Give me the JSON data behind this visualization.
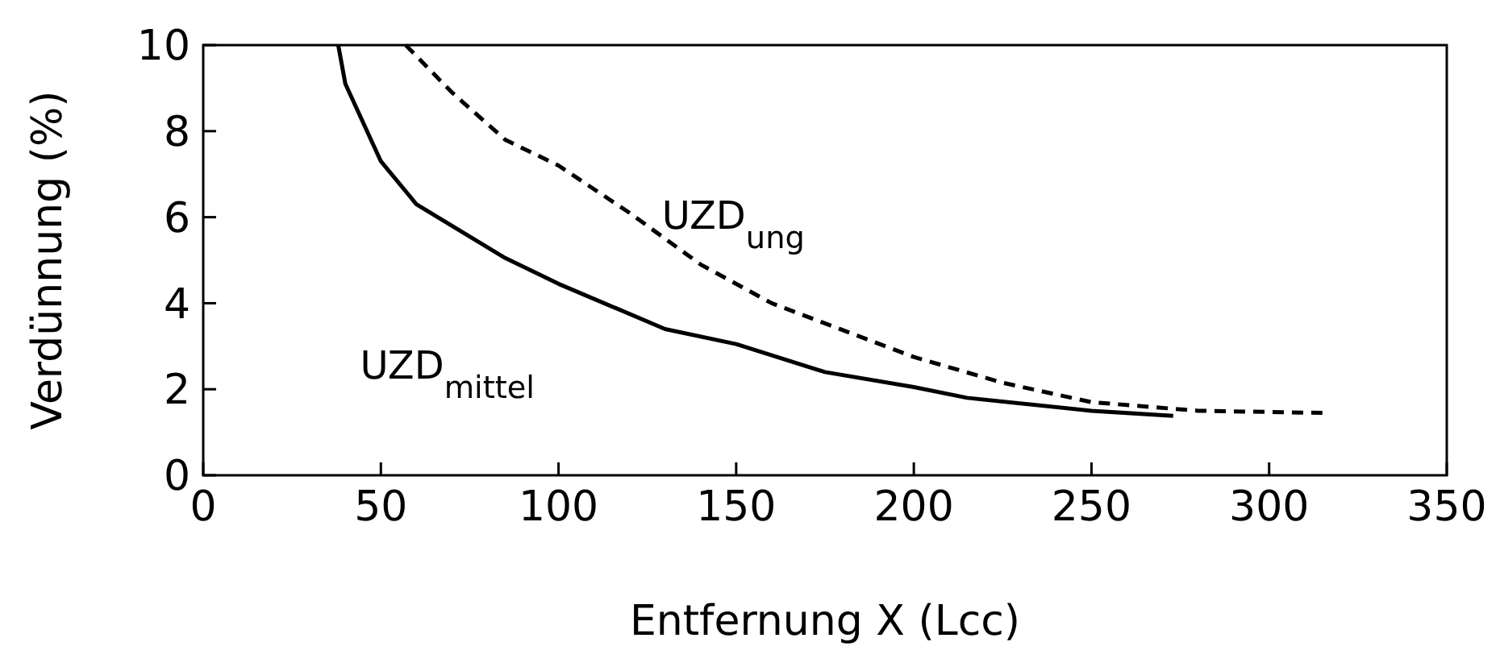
{
  "chart_data": {
    "type": "line",
    "xlabel": "Entfernung X (Lcc)",
    "ylabel": "Verdünnung (%)",
    "xlim": [
      0,
      350
    ],
    "xticks": [
      0,
      50,
      100,
      150,
      200,
      250,
      300,
      350
    ],
    "ylim": [
      0,
      10
    ],
    "yticks": [
      0,
      2,
      4,
      6,
      8,
      10
    ],
    "grid": false,
    "marker": "none",
    "series": [
      {
        "name": "UZD$_{mittel}$",
        "color": "#000000",
        "line_style": "solid",
        "x": [
          38,
          40,
          50,
          60,
          85,
          100,
          130,
          150,
          175,
          200,
          215,
          250,
          273
        ],
        "values": [
          10,
          9.1,
          7.3,
          6.3,
          5.05,
          4.45,
          3.4,
          3.05,
          2.4,
          2.05,
          1.8,
          1.5,
          1.38
        ]
      },
      {
        "name": "UZD$_{ung}$",
        "color": "#000000",
        "line_style": "dashed",
        "x": [
          57,
          70,
          85,
          100,
          120,
          140,
          160,
          200,
          225,
          250,
          280,
          315
        ],
        "values": [
          10,
          8.9,
          7.8,
          7.2,
          6.1,
          4.9,
          4.0,
          2.75,
          2.15,
          1.7,
          1.5,
          1.45
        ]
      }
    ]
  }
}
